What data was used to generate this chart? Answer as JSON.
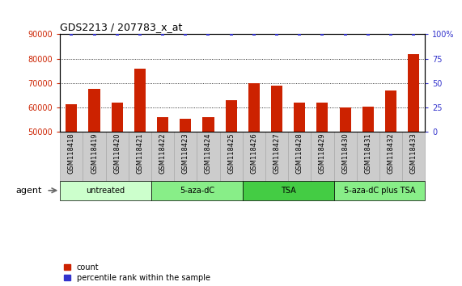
{
  "title": "GDS2213 / 207783_x_at",
  "categories": [
    "GSM118418",
    "GSM118419",
    "GSM118420",
    "GSM118421",
    "GSM118422",
    "GSM118423",
    "GSM118424",
    "GSM118425",
    "GSM118426",
    "GSM118427",
    "GSM118428",
    "GSM118429",
    "GSM118430",
    "GSM118431",
    "GSM118432",
    "GSM118433"
  ],
  "bar_values": [
    61500,
    67500,
    62000,
    76000,
    56000,
    55500,
    56000,
    63000,
    70000,
    69000,
    62000,
    62000,
    60000,
    60500,
    67000,
    82000
  ],
  "percentile_values": [
    100,
    100,
    100,
    100,
    100,
    100,
    100,
    100,
    100,
    100,
    100,
    100,
    100,
    100,
    100,
    100
  ],
  "bar_color": "#cc2200",
  "percentile_color": "#3333cc",
  "ylim_left": [
    50000,
    90000
  ],
  "ylim_right": [
    0,
    100
  ],
  "yticks_left": [
    50000,
    60000,
    70000,
    80000,
    90000
  ],
  "yticks_right": [
    0,
    25,
    50,
    75,
    100
  ],
  "ytick_labels_left": [
    "50000",
    "60000",
    "70000",
    "80000",
    "90000"
  ],
  "ytick_labels_right": [
    "0",
    "25",
    "50",
    "75",
    "100%"
  ],
  "left_tick_color": "#cc2200",
  "right_tick_color": "#3333cc",
  "grid_color": "#000000",
  "groups": [
    {
      "label": "untreated",
      "start": 0,
      "end": 3,
      "color": "#ccffcc"
    },
    {
      "label": "5-aza-dC",
      "start": 4,
      "end": 7,
      "color": "#88ee88"
    },
    {
      "label": "TSA",
      "start": 8,
      "end": 11,
      "color": "#44cc44"
    },
    {
      "label": "5-aza-dC plus TSA",
      "start": 12,
      "end": 15,
      "color": "#88ee88"
    }
  ],
  "agent_label": "agent",
  "legend_count_label": "count",
  "legend_percentile_label": "percentile rank within the sample",
  "bar_width": 0.5,
  "xtick_bg_color": "#cccccc",
  "xtick_border_color": "#aaaaaa"
}
